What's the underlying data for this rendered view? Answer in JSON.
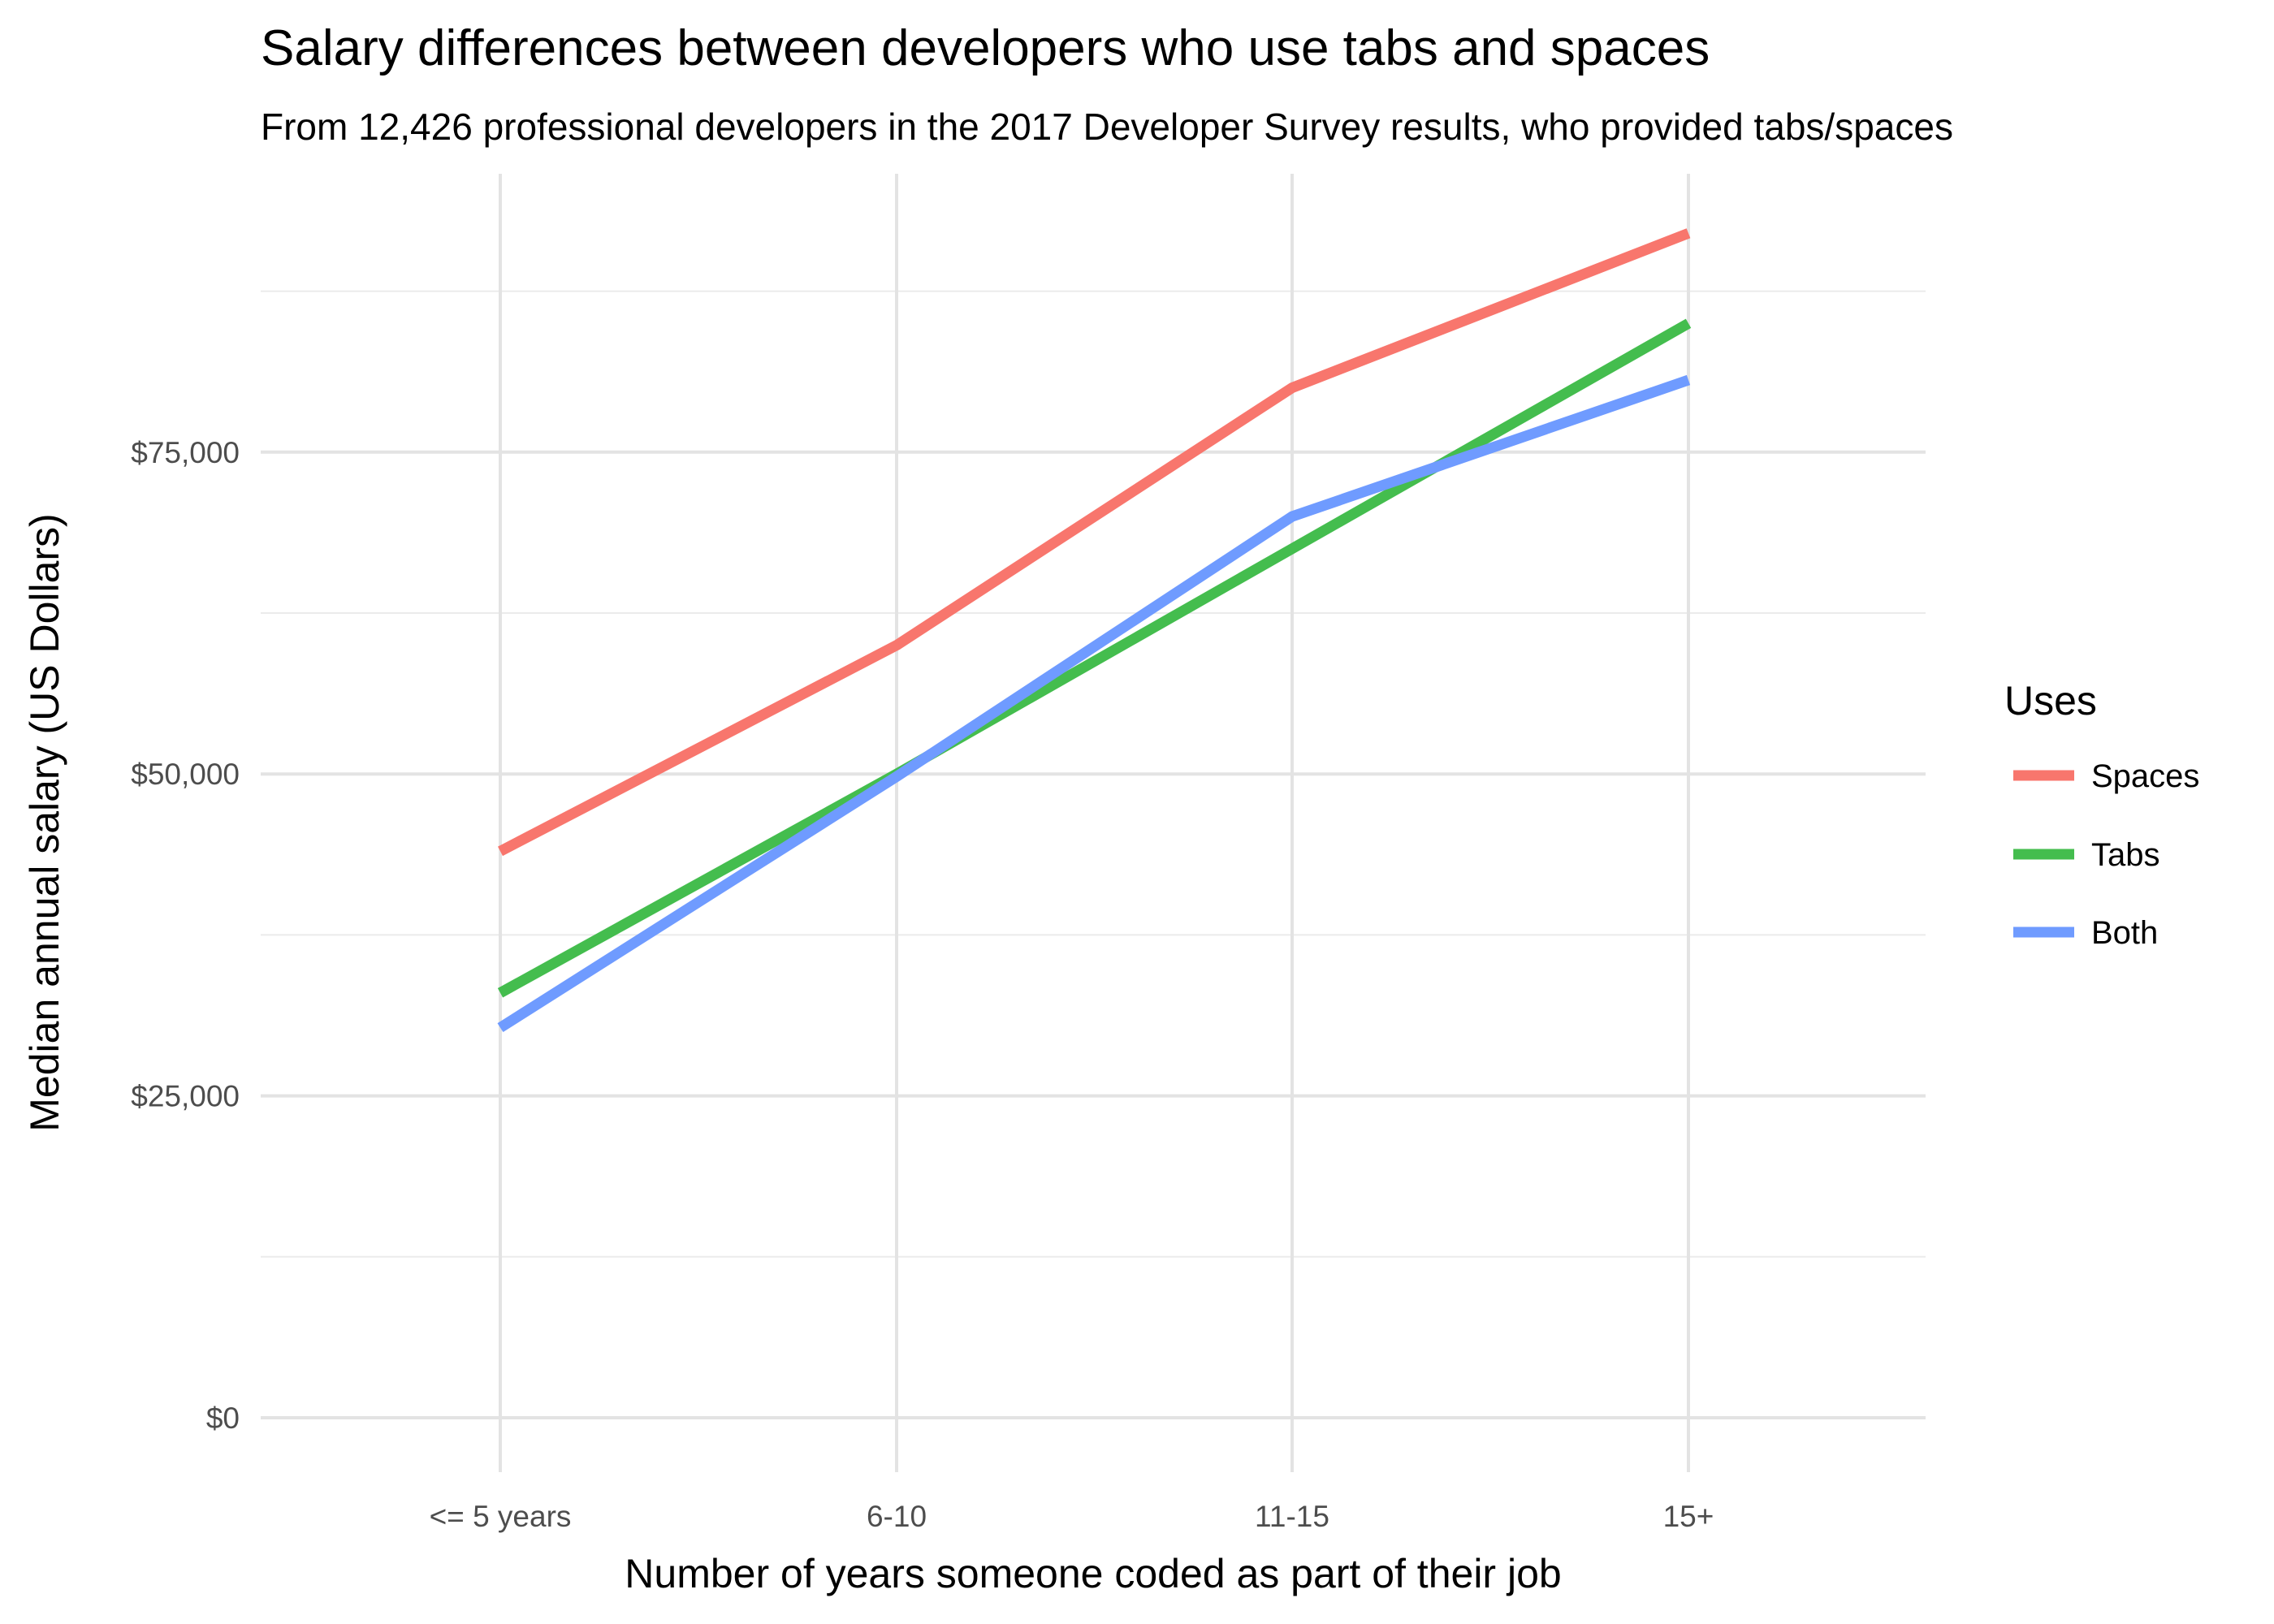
{
  "chart_data": {
    "type": "line",
    "title": "Salary differences between developers who use tabs and spaces",
    "subtitle": "From 12,426 professional developers in the 2017 Developer Survey results, who provided tabs/spaces",
    "xlabel": "Number of years someone coded as part of their job",
    "ylabel": "Median annual salary (US Dollars)",
    "categories": [
      "<= 5 years",
      "6-10",
      "11-15",
      "15+"
    ],
    "ylim": [
      0,
      100000
    ],
    "yticks": [
      0,
      25000,
      50000,
      75000
    ],
    "ytick_labels": [
      "$0",
      "$25,000",
      "$50,000",
      "$75,000"
    ],
    "grid": true,
    "legend": {
      "title": "Uses",
      "position": "right"
    },
    "series": [
      {
        "name": "Spaces",
        "color": "#F8766D",
        "values": [
          44000,
          60000,
          80000,
          92000
        ]
      },
      {
        "name": "Tabs",
        "color": "#44BD4E",
        "values": [
          33000,
          50000,
          67500,
          85000
        ]
      },
      {
        "name": "Both",
        "color": "#6F9BFF",
        "values": [
          30300,
          49800,
          70000,
          80600
        ]
      }
    ]
  }
}
